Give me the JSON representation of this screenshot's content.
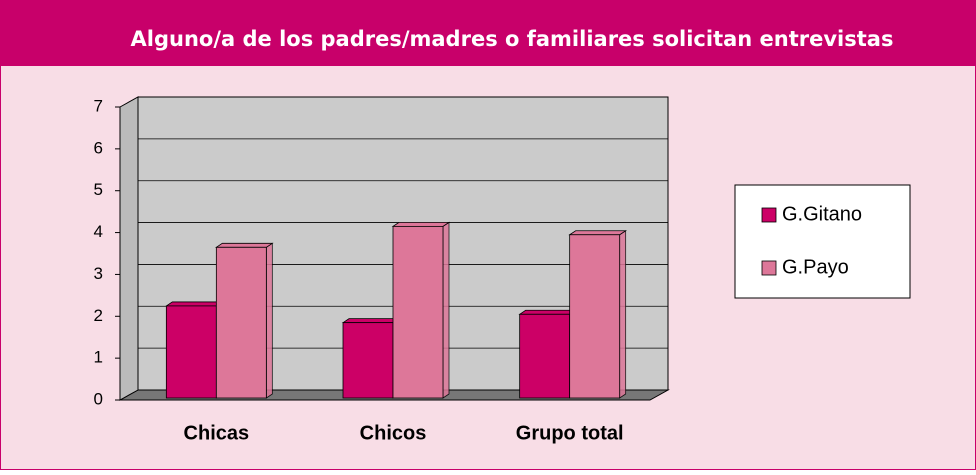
{
  "chart_data": {
    "type": "bar3d",
    "title": "Alguno/a de los padres/madres o familiares solicitan entrevistas",
    "categories": [
      "Chicas",
      "Chicos",
      "Grupo total"
    ],
    "series": [
      {
        "name": "G.Gitano",
        "color": "#cc0066",
        "values": [
          2.2,
          1.8,
          2.0
        ]
      },
      {
        "name": "G.Payo",
        "color": "#dd7799",
        "values": [
          3.6,
          4.1,
          3.9
        ]
      }
    ],
    "ylim": [
      0,
      7
    ],
    "yticks": [
      0,
      1,
      2,
      3,
      4,
      5,
      6,
      7
    ],
    "grid": true,
    "legend": "right"
  }
}
